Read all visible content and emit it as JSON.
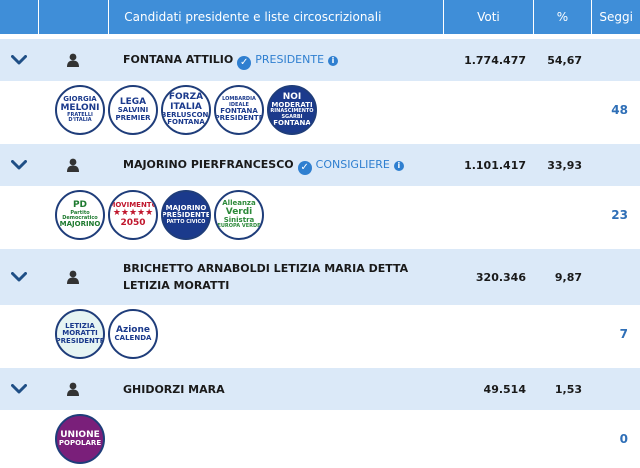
{
  "header": {
    "candidates_label": "Candidati presidente e liste circoscrizionali",
    "votes_label": "Voti",
    "percent_label": "%",
    "seats_label": "Seggi"
  },
  "icons": {
    "expand": "chevron-down-icon",
    "person": "user-icon",
    "verified": "check-circle-icon",
    "info": "info-icon"
  },
  "colors": {
    "header": "#3f8ed8",
    "candidate_row": "#dbe9f8",
    "accent": "#2f7fd0",
    "seats_text": "#2f6fb7"
  },
  "candidates": [
    {
      "name": "FONTANA ATTILIO",
      "role": "PRESIDENTE",
      "votes": "1.774.477",
      "percent": "54,67",
      "seats": "48",
      "lists": [
        {
          "lines": [
            "GIORGIA",
            "MELONI",
            "FRATELLI D'ITALIA"
          ],
          "bg": "#ffffff",
          "fg": "#1b3a8c"
        },
        {
          "lines": [
            "LEGA",
            "SALVINI",
            "PREMIER"
          ],
          "bg": "#ffffff",
          "fg": "#1b3a8c"
        },
        {
          "lines": [
            "FORZA",
            "ITALIA",
            "BERLUSCONI",
            "FONTANA"
          ],
          "bg": "#ffffff",
          "fg": "#1b3a8c"
        },
        {
          "lines": [
            "LOMBARDIA IDEALE",
            "FONTANA",
            "PRESIDENTE"
          ],
          "bg": "#ffffff",
          "fg": "#1b3a8c"
        },
        {
          "lines": [
            "NOI",
            "MODERATI",
            "RINASCIMENTO SGARBI",
            "FONTANA"
          ],
          "bg": "#1b3a8c",
          "fg": "#ffffff"
        }
      ]
    },
    {
      "name": "MAJORINO PIERFRANCESCO",
      "role": "CONSIGLIERE",
      "votes": "1.101.417",
      "percent": "33,93",
      "seats": "23",
      "lists": [
        {
          "lines": [
            "PD",
            "Partito Democratico",
            "MAJORINO"
          ],
          "bg": "#ffffff",
          "fg": "#1e7a2f"
        },
        {
          "lines": [
            "MOVIMENTO",
            "★★★★★",
            "2050"
          ],
          "bg": "#ffffff",
          "fg": "#c0162c"
        },
        {
          "lines": [
            "MAJORINO",
            "PRESIDENTE",
            "PATTO CIVICO"
          ],
          "bg": "#1b3a8c",
          "fg": "#ffffff"
        },
        {
          "lines": [
            "Alleanza",
            "Verdi",
            "Sinistra",
            "EUROPA VERDE"
          ],
          "bg": "#ffffff",
          "fg": "#2d8a3a"
        }
      ]
    },
    {
      "name": "BRICHETTO ARNABOLDI LETIZIA MARIA DETTA LETIZIA MORATTI",
      "role": "",
      "votes": "320.346",
      "percent": "9,87",
      "seats": "7",
      "lists": [
        {
          "lines": [
            "LETIZIA",
            "MORATTI",
            "PRESIDENTE"
          ],
          "bg": "#e6f4f3",
          "fg": "#1b3a8c"
        },
        {
          "lines": [
            "Azione",
            "CALENDA"
          ],
          "bg": "#ffffff",
          "fg": "#1b3a8c"
        }
      ]
    },
    {
      "name": "GHIDORZI MARA",
      "role": "",
      "votes": "49.514",
      "percent": "1,53",
      "seats": "0",
      "lists": [
        {
          "lines": [
            "UNIONE",
            "POPOLARE"
          ],
          "bg": "#7a1f7a",
          "fg": "#ffffff"
        }
      ]
    }
  ]
}
